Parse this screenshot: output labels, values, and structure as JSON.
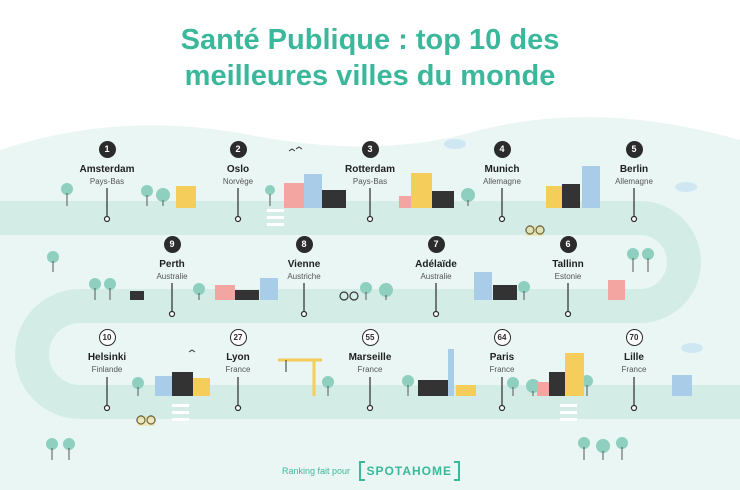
{
  "title": "Santé Publique : top 10 des meilleures villes du monde",
  "title_lines": [
    "Santé Publique : top 10 des",
    "meilleures villes du monde"
  ],
  "colors": {
    "accent": "#3bb89b",
    "road": "#d8efe9",
    "hill": "#e8f5f2",
    "text": "#1f1f1f"
  },
  "cities": [
    {
      "rank": "1",
      "name": "Amsterdam",
      "country": "Pays-Bas"
    },
    {
      "rank": "2",
      "name": "Oslo",
      "country": "Norvège"
    },
    {
      "rank": "3",
      "name": "Rotterdam",
      "country": "Pays-Bas"
    },
    {
      "rank": "4",
      "name": "Munich",
      "country": "Allemagne"
    },
    {
      "rank": "5",
      "name": "Berlin",
      "country": "Allemagne"
    },
    {
      "rank": "6",
      "name": "Tallinn",
      "country": "Estonie"
    },
    {
      "rank": "7",
      "name": "Adélaïde",
      "country": "Australie"
    },
    {
      "rank": "8",
      "name": "Vienne",
      "country": "Austriche"
    },
    {
      "rank": "9",
      "name": "Perth",
      "country": "Australie"
    },
    {
      "rank": "10",
      "name": "Helsinki",
      "country": "Finlande"
    },
    {
      "rank": "27",
      "name": "Lyon",
      "country": "France"
    },
    {
      "rank": "55",
      "name": "Marseille",
      "country": "France"
    },
    {
      "rank": "64",
      "name": "Paris",
      "country": "France"
    },
    {
      "rank": "70",
      "name": "Lille",
      "country": "France"
    }
  ],
  "footer": {
    "text": "Ranking fait pour",
    "brand": "SPOTAHOME"
  }
}
